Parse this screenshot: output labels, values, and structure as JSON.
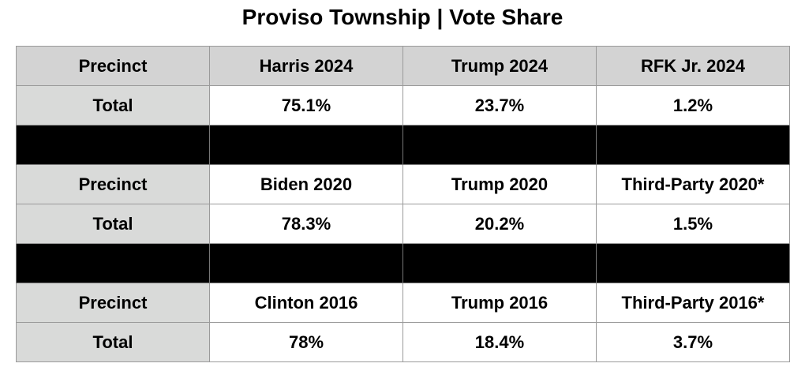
{
  "title": "Proviso Township | Vote Share",
  "sections": [
    {
      "header": [
        "Precinct",
        "Harris 2024",
        "Trump 2024",
        "RFK Jr. 2024"
      ],
      "total": [
        "Total",
        "75.1%",
        "23.7%",
        "1.2%"
      ]
    },
    {
      "header": [
        "Precinct",
        "Biden 2020",
        "Trump 2020",
        "Third-Party 2020*"
      ],
      "total": [
        "Total",
        "78.3%",
        "20.2%",
        "1.5%"
      ]
    },
    {
      "header": [
        "Precinct",
        "Clinton 2016",
        "Trump 2016",
        "Third-Party 2016*"
      ],
      "total": [
        "Total",
        "78%",
        "18.4%",
        "3.7%"
      ]
    }
  ]
}
